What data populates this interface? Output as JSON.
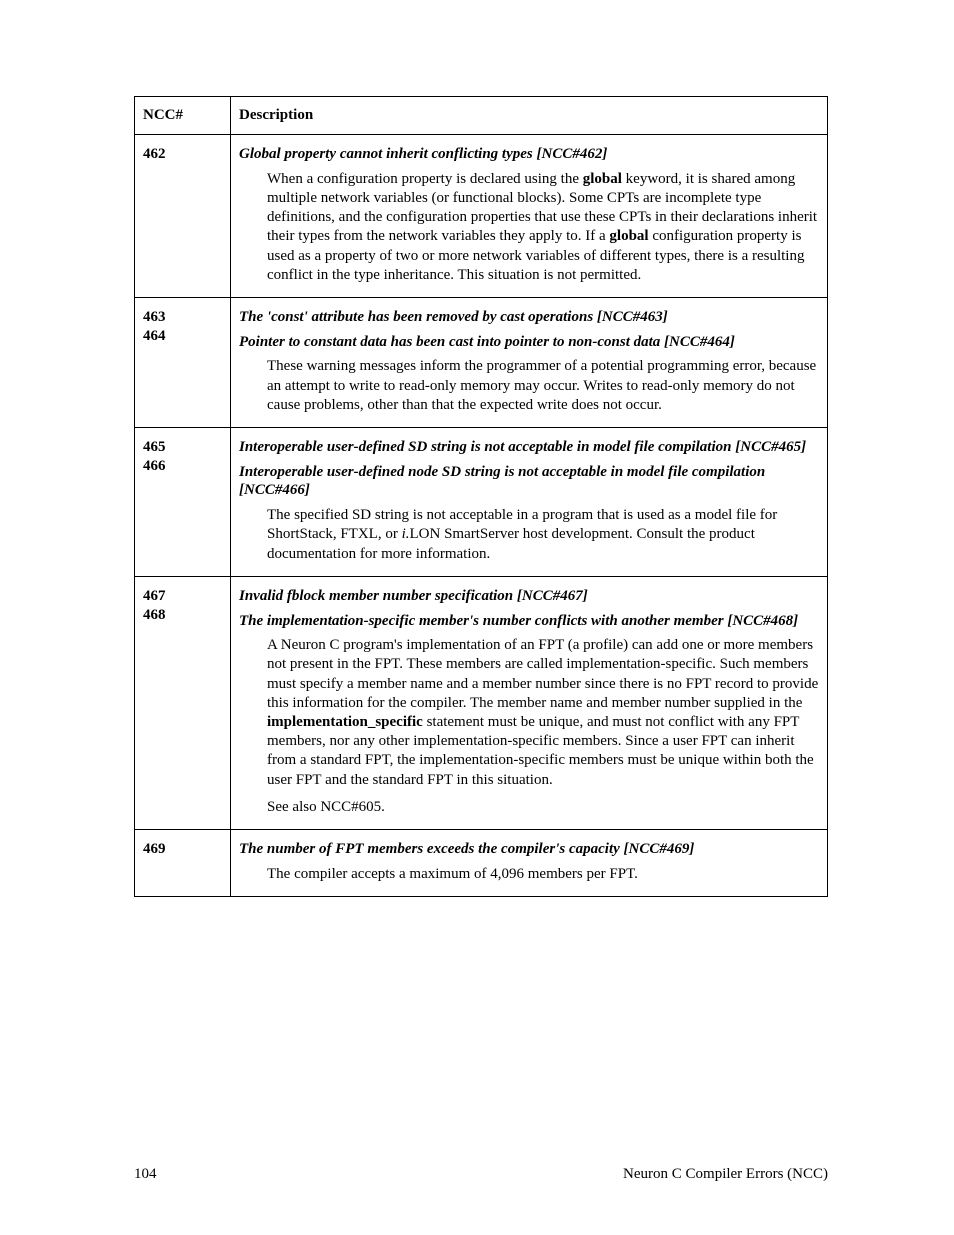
{
  "header": {
    "ncc_label": "NCC#",
    "desc_label": "Description"
  },
  "rows": [
    {
      "ncc": [
        "462"
      ],
      "title": "Global property cannot inherit conflicting types [NCC#462]",
      "body_pre1": "When a configuration property is declared using the ",
      "body_kw1": "global",
      "body_mid1": " keyword, it is shared among multiple network variables (or functional blocks).  Some CPTs are incomplete type definitions, and the configuration properties that use these CPTs in their declarations inherit their types from the network variables they apply to.  If a ",
      "body_kw2": "global",
      "body_post1": " configuration property is used as a property of two or more network variables of different types, there is a resulting conflict in the type inheritance.  This situation is not permitted."
    },
    {
      "ncc": [
        "463",
        "464"
      ],
      "title_lines": [
        "The 'const' attribute has been removed by cast operations [NCC#463]",
        "Pointer to constant data has been cast into pointer to non-const data [NCC#464]"
      ],
      "body": "These warning messages inform the programmer of a potential programming error, because an attempt to write to read-only memory may occur.  Writes to read-only memory do not cause problems, other than that the expected write does not occur."
    },
    {
      "ncc": [
        "465",
        "466"
      ],
      "title_lines": [
        "Interoperable user-defined SD string is not acceptable in model file compilation [NCC#465]",
        "Interoperable user-defined node SD string is not acceptable in model file compilation [NCC#466]"
      ],
      "body_pre": "The specified SD string is not acceptable in a program that is used as a model file for ShortStack, FTXL, or ",
      "body_ital": "i.",
      "body_post": "LON SmartServer host development.  Consult the product documentation for more information."
    },
    {
      "ncc": [
        "467",
        "468"
      ],
      "title_lines": [
        "Invalid fblock member number specification [NCC#467]",
        "The implementation-specific member's number conflicts with another member [NCC#468]"
      ],
      "body_pre": "A Neuron C program's implementation of an FPT (a profile) can add one or more members not present in the FPT.  These members are called implementation-specific.  Such members must specify a member name and a member number since there is no FPT record to provide this information for the compiler.  The member name and member number supplied in the ",
      "body_kw": "implementation_specific",
      "body_post": " statement must be unique, and must not conflict with any FPT members, nor any other implementation-specific members.  Since a user FPT can inherit from a standard FPT, the implementation-specific members must be unique within both the user FPT and the standard FPT in this situation.",
      "body2": "See also NCC#605."
    },
    {
      "ncc": [
        "469"
      ],
      "title": "The number of FPT members exceeds the compiler's capacity [NCC#469]",
      "body": "The compiler accepts a maximum of 4,096 members per FPT."
    }
  ],
  "footer": {
    "page": "104",
    "label": "Neuron C Compiler Errors (NCC)"
  }
}
